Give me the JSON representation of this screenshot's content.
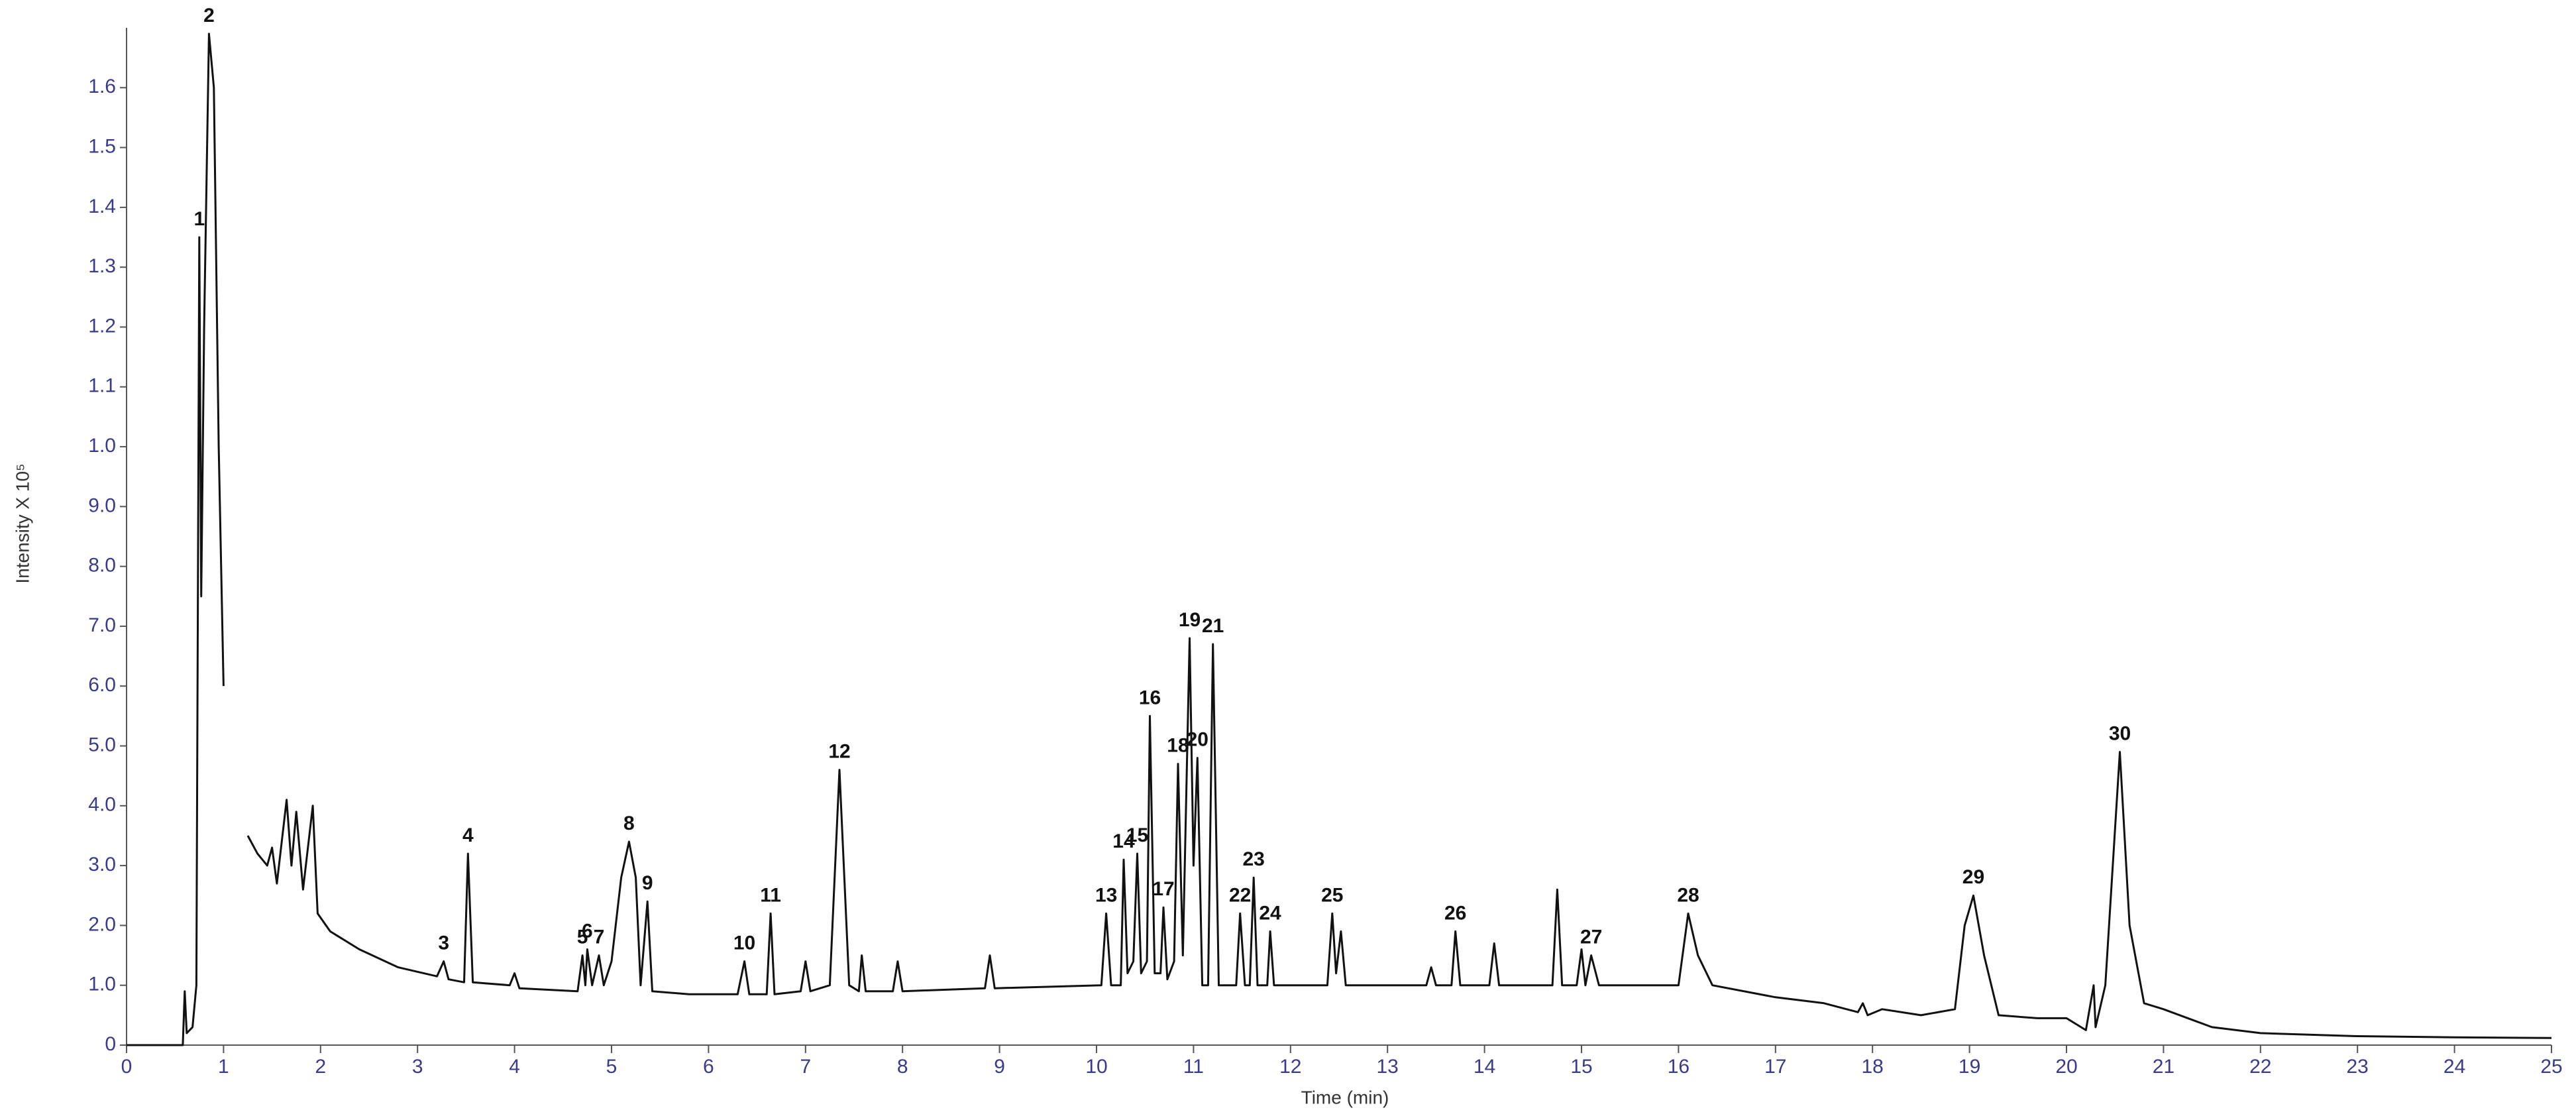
{
  "chart_data": {
    "type": "line",
    "xlabel": "Time (min)",
    "ylabel": "Intensity X 10⁵",
    "xlim": [
      0,
      25
    ],
    "xticks": [
      0,
      1,
      2,
      3,
      4,
      5,
      6,
      7,
      8,
      9,
      10,
      11,
      12,
      13,
      14,
      15,
      16,
      17,
      18,
      19,
      20,
      21,
      22,
      23,
      24,
      25
    ],
    "ylim": [
      0,
      1.7
    ],
    "yticks": [
      0,
      {
        "value": 0.1,
        "label": "1.0"
      },
      {
        "value": 0.2,
        "label": "2.0"
      },
      {
        "value": 0.3,
        "label": "3.0"
      },
      {
        "value": 0.4,
        "label": "4.0"
      },
      {
        "value": 0.5,
        "label": "5.0"
      },
      {
        "value": 0.6,
        "label": "6.0"
      },
      {
        "value": 0.7,
        "label": "7.0"
      },
      {
        "value": 0.8,
        "label": "8.0"
      },
      {
        "value": 0.9,
        "label": "9.0"
      },
      {
        "value": 1.0,
        "label": "1.0"
      },
      1.1,
      1.2,
      1.3,
      1.4,
      1.5,
      1.6
    ],
    "series": [
      {
        "color": "#111111",
        "x": [
          0,
          0.58,
          0.6,
          0.62,
          0.68,
          0.72,
          0.75,
          0.77,
          0.8,
          0.85,
          0.9,
          0.95,
          1.0,
          1.1,
          1.25,
          1.35,
          1.45,
          1.5,
          1.55,
          1.65,
          1.7,
          1.75,
          1.82,
          1.92,
          1.97,
          2.1,
          2.4,
          2.8,
          3.2,
          3.27,
          3.32,
          3.48,
          3.52,
          3.57,
          3.95,
          4.0,
          4.05,
          4.65,
          4.7,
          4.73,
          4.75,
          4.8,
          4.87,
          4.92,
          5.0,
          5.1,
          5.18,
          5.25,
          5.3,
          5.37,
          5.42,
          5.8,
          6.3,
          6.37,
          6.42,
          6.6,
          6.64,
          6.68,
          6.95,
          7.0,
          7.05,
          7.25,
          7.35,
          7.45,
          7.55,
          7.58,
          7.62,
          7.9,
          7.95,
          8.0,
          8.85,
          8.9,
          8.95,
          10.05,
          10.1,
          10.15,
          10.25,
          10.28,
          10.32,
          10.38,
          10.42,
          10.46,
          10.52,
          10.55,
          10.6,
          10.66,
          10.69,
          10.73,
          10.8,
          10.84,
          10.89,
          10.96,
          11.0,
          11.04,
          11.09,
          11.15,
          11.2,
          11.26,
          11.44,
          11.48,
          11.53,
          11.58,
          11.62,
          11.66,
          11.76,
          11.79,
          11.83,
          12.38,
          12.43,
          12.47,
          12.52,
          12.57,
          13.4,
          13.45,
          13.5,
          13.66,
          13.7,
          13.75,
          14.05,
          14.1,
          14.15,
          14.7,
          14.75,
          14.8,
          14.95,
          15.0,
          15.04,
          15.1,
          15.18,
          16.0,
          16.1,
          16.2,
          16.35,
          17.0,
          17.5,
          17.85,
          17.9,
          17.95,
          18.1,
          18.5,
          18.85,
          18.95,
          19.04,
          19.15,
          19.3,
          19.7,
          20.0,
          20.2,
          20.28,
          20.3,
          20.4,
          20.55,
          20.65,
          20.8,
          21.0,
          21.5,
          22,
          23,
          24,
          25
        ],
        "values": [
          0,
          0,
          0.09,
          0.02,
          0.03,
          0.1,
          1.35,
          0.75,
          1.2,
          1.69,
          1.6,
          1.0,
          0.6,
          null,
          0.35,
          0.32,
          0.3,
          0.33,
          0.27,
          0.41,
          0.3,
          0.39,
          0.26,
          0.4,
          0.22,
          0.19,
          0.16,
          0.13,
          0.115,
          0.14,
          0.11,
          0.105,
          0.32,
          0.105,
          0.1,
          0.12,
          0.095,
          0.09,
          0.15,
          0.1,
          0.16,
          0.1,
          0.15,
          0.1,
          0.14,
          0.28,
          0.34,
          0.28,
          0.1,
          0.24,
          0.09,
          0.085,
          0.085,
          0.14,
          0.085,
          0.085,
          0.22,
          0.085,
          0.09,
          0.14,
          0.09,
          0.1,
          0.46,
          0.1,
          0.09,
          0.15,
          0.09,
          0.09,
          0.14,
          0.09,
          0.095,
          0.15,
          0.095,
          0.1,
          0.22,
          0.1,
          0.1,
          0.31,
          0.12,
          0.14,
          0.32,
          0.12,
          0.14,
          0.55,
          0.12,
          0.12,
          0.23,
          0.11,
          0.14,
          0.47,
          0.15,
          0.68,
          0.3,
          0.48,
          0.1,
          0.1,
          0.67,
          0.1,
          0.1,
          0.22,
          0.1,
          0.1,
          0.28,
          0.1,
          0.1,
          0.19,
          0.1,
          0.1,
          0.22,
          0.12,
          0.19,
          0.1,
          0.1,
          0.13,
          0.1,
          0.1,
          0.19,
          0.1,
          0.1,
          0.17,
          0.1,
          0.1,
          0.26,
          0.1,
          0.1,
          0.16,
          0.1,
          0.15,
          0.1,
          0.1,
          0.22,
          0.15,
          0.1,
          0.08,
          0.07,
          0.055,
          0.07,
          0.05,
          0.06,
          0.05,
          0.06,
          0.2,
          0.25,
          0.15,
          0.05,
          0.045,
          0.045,
          0.025,
          0.1,
          0.03,
          0.1,
          0.49,
          0.2,
          0.07,
          0.06,
          0.03,
          0.02,
          0.015,
          0.013,
          0.012
        ]
      }
    ],
    "peaks": [
      {
        "label": "1",
        "x": 0.75,
        "y": 1.35
      },
      {
        "label": "2",
        "x": 0.85,
        "y": 1.69
      },
      {
        "label": "3",
        "x": 3.27,
        "y": 0.14
      },
      {
        "label": "4",
        "x": 3.52,
        "y": 0.32
      },
      {
        "label": "5",
        "x": 4.7,
        "y": 0.15
      },
      {
        "label": "6",
        "x": 4.75,
        "y": 0.16
      },
      {
        "label": "7",
        "x": 4.87,
        "y": 0.15
      },
      {
        "label": "8",
        "x": 5.18,
        "y": 0.34
      },
      {
        "label": "9",
        "x": 5.37,
        "y": 0.24
      },
      {
        "label": "10",
        "x": 6.37,
        "y": 0.14
      },
      {
        "label": "11",
        "x": 6.64,
        "y": 0.22
      },
      {
        "label": "12",
        "x": 7.35,
        "y": 0.46
      },
      {
        "label": "13",
        "x": 10.1,
        "y": 0.22
      },
      {
        "label": "14",
        "x": 10.28,
        "y": 0.31
      },
      {
        "label": "15",
        "x": 10.42,
        "y": 0.32
      },
      {
        "label": "16",
        "x": 10.55,
        "y": 0.55
      },
      {
        "label": "17",
        "x": 10.69,
        "y": 0.23
      },
      {
        "label": "18",
        "x": 10.84,
        "y": 0.47
      },
      {
        "label": "19",
        "x": 10.96,
        "y": 0.68
      },
      {
        "label": "20",
        "x": 11.04,
        "y": 0.48
      },
      {
        "label": "21",
        "x": 11.2,
        "y": 0.67
      },
      {
        "label": "22",
        "x": 11.48,
        "y": 0.22
      },
      {
        "label": "23",
        "x": 11.62,
        "y": 0.28
      },
      {
        "label": "24",
        "x": 11.79,
        "y": 0.19
      },
      {
        "label": "25",
        "x": 12.43,
        "y": 0.22
      },
      {
        "label": "26",
        "x": 13.7,
        "y": 0.19
      },
      {
        "label": "27",
        "x": 15.1,
        "y": 0.15
      },
      {
        "label": "28",
        "x": 16.1,
        "y": 0.22
      },
      {
        "label": "29",
        "x": 19.04,
        "y": 0.25
      },
      {
        "label": "30",
        "x": 20.55,
        "y": 0.49
      }
    ]
  }
}
